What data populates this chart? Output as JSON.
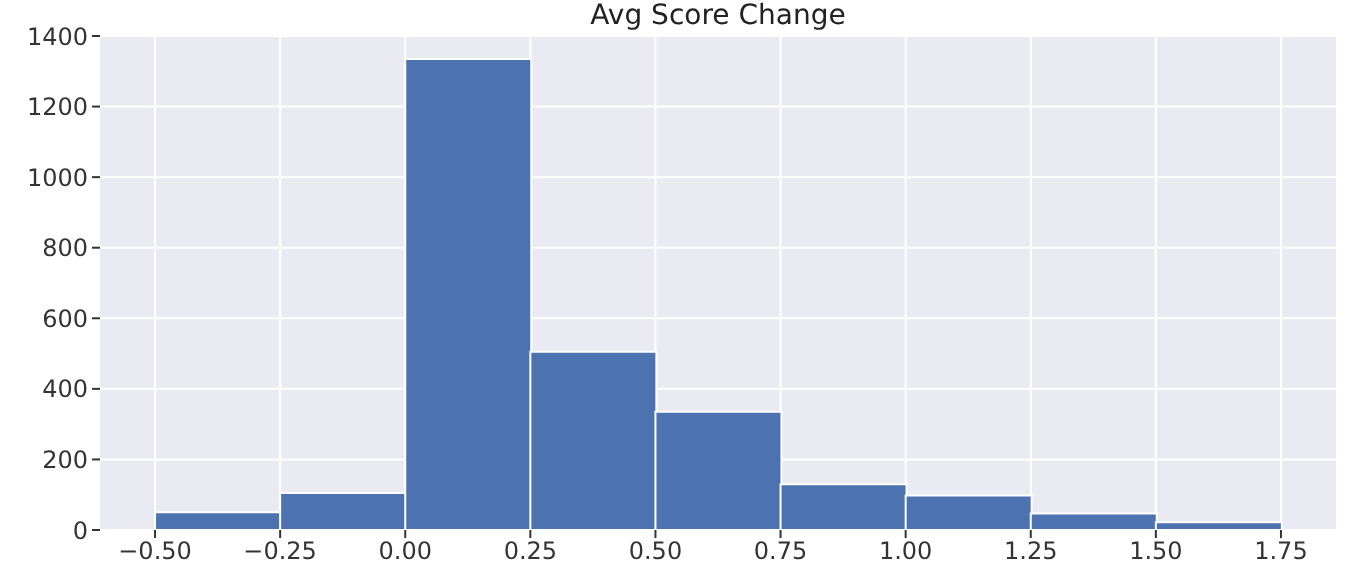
{
  "chart_data": {
    "type": "histogram",
    "title": "Avg Score Change",
    "bins": [
      -0.5,
      -0.25,
      0,
      0.25,
      0.5,
      0.75,
      1,
      1.25,
      1.5,
      1.75
    ],
    "values": [
      50,
      105,
      1335,
      505,
      335,
      130,
      98,
      47,
      22
    ],
    "color": "#4c72b0",
    "xlim": [
      -0.61,
      1.86
    ],
    "xticks": [
      {
        "value": -0.5,
        "label": "−0.50"
      },
      {
        "value": -0.25,
        "label": "−0.25"
      },
      {
        "value": 0,
        "label": "0.00"
      },
      {
        "value": 0.25,
        "label": "0.25"
      },
      {
        "value": 0.5,
        "label": "0.50"
      },
      {
        "value": 0.75,
        "label": "0.75"
      },
      {
        "value": 1,
        "label": "1.00"
      },
      {
        "value": 1.25,
        "label": "1.25"
      },
      {
        "value": 1.5,
        "label": "1.50"
      },
      {
        "value": 1.75,
        "label": "1.75"
      }
    ],
    "ylim": [
      0,
      1400
    ],
    "yticks": [
      0,
      200,
      400,
      600,
      800,
      1000,
      1200,
      1400
    ],
    "grid": true
  }
}
